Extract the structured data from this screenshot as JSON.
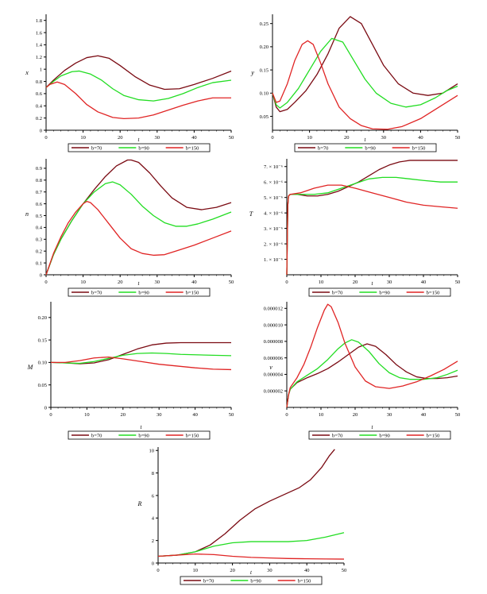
{
  "colors": {
    "b70": "#7a0a12",
    "b90": "#22dd22",
    "b150": "#e02424",
    "axis": "#000000"
  },
  "legend_labels": [
    "b=70",
    "b=90",
    "b=150"
  ],
  "chart_data": [
    {
      "id": "x",
      "type": "line",
      "title": "",
      "xlabel": "t",
      "ylabel": "x",
      "xlim": [
        0,
        50
      ],
      "ylim": [
        0,
        1.9
      ],
      "xticks": [
        0,
        10,
        20,
        30,
        40,
        50
      ],
      "xtick_labels": [
        "0",
        "10",
        "20",
        "30",
        "40",
        "50"
      ],
      "yticks": [
        0,
        0.2,
        0.4,
        0.6,
        0.8,
        1,
        1.2,
        1.4,
        1.6,
        1.8
      ],
      "ytick_labels": [
        "0",
        "0.2",
        "0.4",
        "0.6",
        "0.8",
        "1",
        "1.2",
        "1.4",
        "1.6",
        "1.8"
      ],
      "series": [
        {
          "name": "b=70",
          "color": "#7a0a12",
          "x": [
            0,
            2,
            5,
            8,
            11,
            14,
            17,
            20,
            24,
            28,
            32,
            36,
            40,
            45,
            50
          ],
          "y": [
            0.7,
            0.82,
            0.98,
            1.1,
            1.19,
            1.22,
            1.18,
            1.06,
            0.88,
            0.74,
            0.67,
            0.68,
            0.75,
            0.85,
            0.97
          ]
        },
        {
          "name": "b=90",
          "color": "#22dd22",
          "x": [
            0,
            2,
            4,
            7,
            9,
            12,
            15,
            18,
            21,
            25,
            29,
            33,
            37,
            41,
            45,
            50
          ],
          "y": [
            0.7,
            0.8,
            0.89,
            0.96,
            0.97,
            0.92,
            0.82,
            0.68,
            0.57,
            0.5,
            0.48,
            0.52,
            0.6,
            0.7,
            0.78,
            0.82
          ]
        },
        {
          "name": "b=150",
          "color": "#e02424",
          "x": [
            0,
            1,
            3,
            5,
            8,
            11,
            14,
            18,
            21,
            25,
            29,
            33,
            37,
            41,
            45,
            50
          ],
          "y": [
            0.7,
            0.75,
            0.79,
            0.75,
            0.6,
            0.42,
            0.3,
            0.21,
            0.19,
            0.2,
            0.25,
            0.33,
            0.41,
            0.48,
            0.53,
            0.53
          ]
        }
      ]
    },
    {
      "id": "y",
      "type": "line",
      "title": "",
      "xlabel": "t",
      "ylabel": "y",
      "xlim": [
        0,
        50
      ],
      "ylim": [
        0.02,
        0.27
      ],
      "xticks": [
        0,
        10,
        20,
        30,
        40,
        50
      ],
      "xtick_labels": [
        "0",
        "10",
        "20",
        "30",
        "40",
        "50"
      ],
      "yticks": [
        0.05,
        0.1,
        0.15,
        0.2,
        0.25
      ],
      "ytick_labels": [
        "0.05",
        "0.10",
        "0.15",
        "0.20",
        "0.25"
      ],
      "series": [
        {
          "name": "b=70",
          "color": "#7a0a12",
          "x": [
            0,
            1,
            2,
            4,
            6,
            9,
            12,
            15,
            18,
            21,
            24,
            27,
            30,
            34,
            38,
            42,
            46,
            50
          ],
          "y": [
            0.1,
            0.07,
            0.06,
            0.065,
            0.08,
            0.105,
            0.14,
            0.185,
            0.24,
            0.265,
            0.25,
            0.205,
            0.16,
            0.12,
            0.1,
            0.095,
            0.1,
            0.12
          ]
        },
        {
          "name": "b=90",
          "color": "#22dd22",
          "x": [
            0,
            1,
            2,
            4,
            7,
            10,
            13,
            16,
            19,
            22,
            25,
            28,
            32,
            36,
            40,
            44,
            47,
            50
          ],
          "y": [
            0.1,
            0.075,
            0.068,
            0.08,
            0.11,
            0.15,
            0.19,
            0.218,
            0.21,
            0.17,
            0.13,
            0.1,
            0.078,
            0.07,
            0.075,
            0.09,
            0.105,
            0.115
          ]
        },
        {
          "name": "b=150",
          "color": "#e02424",
          "x": [
            0,
            1,
            2,
            4,
            6,
            8,
            9.5,
            11,
            13,
            15,
            18,
            21,
            24,
            27,
            31,
            35,
            40,
            45,
            50
          ],
          "y": [
            0.1,
            0.08,
            0.083,
            0.12,
            0.17,
            0.205,
            0.213,
            0.205,
            0.165,
            0.12,
            0.07,
            0.045,
            0.03,
            0.023,
            0.022,
            0.028,
            0.045,
            0.07,
            0.095
          ]
        }
      ]
    },
    {
      "id": "n",
      "type": "line",
      "title": "",
      "xlabel": "t",
      "ylabel": "n",
      "xlim": [
        0,
        50
      ],
      "ylim": [
        0,
        0.98
      ],
      "xticks": [
        0,
        10,
        20,
        30,
        40,
        50
      ],
      "xtick_labels": [
        "0",
        "10",
        "20",
        "30",
        "40",
        "50"
      ],
      "yticks": [
        0,
        0.1,
        0.2,
        0.3,
        0.4,
        0.5,
        0.6,
        0.7,
        0.8,
        0.9
      ],
      "ytick_labels": [
        "0",
        "0.1",
        "0.2",
        "0.3",
        "0.4",
        "0.5",
        "0.6",
        "0.7",
        "0.8",
        "0.9"
      ],
      "series": [
        {
          "name": "b=70",
          "color": "#7a0a12",
          "x": [
            0,
            2,
            4,
            7,
            10,
            13,
            16,
            19,
            22,
            23,
            25,
            28,
            31,
            34,
            38,
            42,
            46,
            50
          ],
          "y": [
            0,
            0.17,
            0.3,
            0.46,
            0.6,
            0.72,
            0.83,
            0.92,
            0.97,
            0.97,
            0.95,
            0.86,
            0.75,
            0.65,
            0.57,
            0.55,
            0.57,
            0.61
          ]
        },
        {
          "name": "b=90",
          "color": "#22dd22",
          "x": [
            0,
            2,
            4,
            7,
            10,
            13,
            16,
            18,
            20,
            23,
            26,
            29,
            32,
            35,
            38,
            41,
            45,
            50
          ],
          "y": [
            0,
            0.17,
            0.3,
            0.46,
            0.6,
            0.7,
            0.77,
            0.785,
            0.76,
            0.68,
            0.58,
            0.5,
            0.44,
            0.41,
            0.41,
            0.43,
            0.47,
            0.53
          ]
        },
        {
          "name": "b=150",
          "color": "#e02424",
          "x": [
            0,
            2,
            4,
            6,
            8,
            10,
            11,
            12,
            14,
            17,
            20,
            23,
            26,
            29,
            32,
            35,
            40,
            45,
            50
          ],
          "y": [
            0,
            0.18,
            0.32,
            0.44,
            0.53,
            0.6,
            0.62,
            0.61,
            0.55,
            0.43,
            0.31,
            0.22,
            0.18,
            0.165,
            0.17,
            0.2,
            0.25,
            0.31,
            0.37
          ]
        }
      ]
    },
    {
      "id": "T",
      "type": "line",
      "title": "",
      "xlabel": "t",
      "ylabel": "T",
      "xlim": [
        0,
        50
      ],
      "ylim": [
        0,
        7.5e-06
      ],
      "xticks": [
        0,
        10,
        20,
        30,
        40,
        50
      ],
      "xtick_labels": [
        "0",
        "10",
        "20",
        "30",
        "40",
        "50"
      ],
      "yticks": [
        1e-06,
        2e-06,
        3e-06,
        4e-06,
        5e-06,
        6e-06,
        7e-06
      ],
      "ytick_labels": [
        "1. × 10⁻⁶",
        "2. × 10⁻⁶",
        "3. × 10⁻⁶",
        "4. × 10⁻⁶",
        "5. × 10⁻⁶",
        "6. × 10⁻⁶",
        "7. × 10⁻⁶"
      ],
      "series": [
        {
          "name": "b=70",
          "color": "#7a0a12",
          "x": [
            0,
            0.3,
            0.5,
            1,
            3,
            6,
            9,
            12,
            15,
            18,
            21,
            24,
            27,
            30,
            33,
            36,
            40,
            45,
            50
          ],
          "y": [
            0,
            4.5e-06,
            5.1e-06,
            5.2e-06,
            5.2e-06,
            5.1e-06,
            5.1e-06,
            5.2e-06,
            5.4e-06,
            5.7e-06,
            6e-06,
            6.4e-06,
            6.8e-06,
            7.1e-06,
            7.3e-06,
            7.4e-06,
            7.4e-06,
            7.4e-06,
            7.4e-06
          ]
        },
        {
          "name": "b=90",
          "color": "#22dd22",
          "x": [
            0,
            0.3,
            0.5,
            1,
            4,
            8,
            12,
            16,
            20,
            24,
            28,
            32,
            36,
            40,
            45,
            50
          ],
          "y": [
            0,
            4.5e-06,
            5.1e-06,
            5.2e-06,
            5.2e-06,
            5.2e-06,
            5.3e-06,
            5.6e-06,
            5.9e-06,
            6.2e-06,
            6.3e-06,
            6.3e-06,
            6.2e-06,
            6.1e-06,
            6e-06,
            6e-06
          ]
        },
        {
          "name": "b=150",
          "color": "#e02424",
          "x": [
            0,
            0.3,
            0.5,
            1,
            4,
            8,
            12,
            16,
            20,
            25,
            30,
            35,
            40,
            45,
            50
          ],
          "y": [
            0,
            4.5e-06,
            5.1e-06,
            5.2e-06,
            5.3e-06,
            5.6e-06,
            5.8e-06,
            5.8e-06,
            5.6e-06,
            5.3e-06,
            5e-06,
            4.7e-06,
            4.5e-06,
            4.4e-06,
            4.3e-06
          ]
        }
      ]
    },
    {
      "id": "M",
      "type": "line",
      "title": "",
      "xlabel": "t",
      "ylabel": "M",
      "xlim": [
        0,
        50
      ],
      "ylim": [
        0,
        0.235
      ],
      "xticks": [
        0,
        10,
        20,
        30,
        40,
        50
      ],
      "xtick_labels": [
        "0",
        "10",
        "20",
        "30",
        "40",
        "50"
      ],
      "yticks": [
        0,
        0.05,
        0.1,
        0.15,
        0.2
      ],
      "ytick_labels": [
        "0",
        "0.05",
        "0.10",
        "0.15",
        "0.20"
      ],
      "series": [
        {
          "name": "b=70",
          "color": "#7a0a12",
          "x": [
            0,
            4,
            8,
            12,
            16,
            20,
            24,
            28,
            32,
            36,
            40,
            45,
            50
          ],
          "y": [
            0.1,
            0.099,
            0.097,
            0.099,
            0.106,
            0.118,
            0.13,
            0.139,
            0.143,
            0.144,
            0.144,
            0.144,
            0.144
          ]
        },
        {
          "name": "b=90",
          "color": "#22dd22",
          "x": [
            0,
            4,
            8,
            12,
            16,
            20,
            24,
            28,
            32,
            36,
            40,
            45,
            50
          ],
          "y": [
            0.1,
            0.099,
            0.098,
            0.102,
            0.109,
            0.116,
            0.12,
            0.121,
            0.12,
            0.118,
            0.117,
            0.116,
            0.115
          ]
        },
        {
          "name": "b=150",
          "color": "#e02424",
          "x": [
            0,
            4,
            8,
            12,
            16,
            20,
            25,
            30,
            35,
            40,
            45,
            50
          ],
          "y": [
            0.1,
            0.1,
            0.104,
            0.11,
            0.112,
            0.108,
            0.102,
            0.096,
            0.092,
            0.088,
            0.085,
            0.084
          ]
        }
      ]
    },
    {
      "id": "v",
      "type": "line",
      "title": "",
      "xlabel": "t",
      "ylabel": "v",
      "xlim": [
        0,
        50
      ],
      "ylim": [
        0,
        1.28e-05
      ],
      "xticks": [
        0,
        10,
        20,
        30,
        40,
        50
      ],
      "xtick_labels": [
        "0",
        "10",
        "20",
        "30",
        "40",
        "50"
      ],
      "yticks": [
        2e-06,
        4e-06,
        6e-06,
        8e-06,
        1e-05,
        1.2e-05
      ],
      "ytick_labels": [
        "0.000002",
        "0.000004",
        "0.000006",
        "0.000008",
        "0.000010",
        "0.000012"
      ],
      "series": [
        {
          "name": "b=70",
          "color": "#7a0a12",
          "x": [
            0,
            0.5,
            1,
            3,
            6,
            9,
            12,
            15,
            18,
            21,
            23.5,
            26,
            29,
            32,
            35,
            38,
            41,
            44,
            47,
            50
          ],
          "y": [
            0,
            1.5e-06,
            2.2e-06,
            3e-06,
            3.6e-06,
            4.1e-06,
            4.7e-06,
            5.5e-06,
            6.4e-06,
            7.3e-06,
            7.7e-06,
            7.4e-06,
            6.4e-06,
            5.2e-06,
            4.3e-06,
            3.7e-06,
            3.5e-06,
            3.5e-06,
            3.6e-06,
            3.8e-06
          ]
        },
        {
          "name": "b=90",
          "color": "#22dd22",
          "x": [
            0,
            0.5,
            1,
            3,
            6,
            9,
            12,
            15,
            17,
            19,
            21,
            24,
            27,
            30,
            33,
            36,
            40,
            44,
            47,
            50
          ],
          "y": [
            0,
            1.5e-06,
            2.2e-06,
            3.1e-06,
            3.9e-06,
            4.7e-06,
            5.8e-06,
            7.1e-06,
            7.8e-06,
            8.2e-06,
            7.9e-06,
            6.8e-06,
            5.3e-06,
            4.2e-06,
            3.6e-06,
            3.4e-06,
            3.4e-06,
            3.6e-06,
            4e-06,
            4.5e-06
          ]
        },
        {
          "name": "b=150",
          "color": "#e02424",
          "x": [
            0,
            0.5,
            1,
            3,
            5,
            7,
            9,
            11,
            12,
            13,
            15,
            17,
            20,
            23,
            26,
            30,
            34,
            38,
            42,
            46,
            50
          ],
          "y": [
            0,
            1.5e-06,
            2.4e-06,
            3.6e-06,
            5.2e-06,
            7.3e-06,
            9.7e-06,
            1.18e-05,
            1.25e-05,
            1.22e-05,
            1.03e-05,
            7.8e-06,
            4.9e-06,
            3.2e-06,
            2.5e-06,
            2.3e-06,
            2.6e-06,
            3.1e-06,
            3.8e-06,
            4.6e-06,
            5.6e-06
          ]
        }
      ]
    },
    {
      "id": "R",
      "type": "line",
      "title": "",
      "xlabel": "t",
      "ylabel": "R",
      "xlim": [
        0,
        50
      ],
      "ylim": [
        0,
        10.3
      ],
      "xticks": [
        0,
        10,
        20,
        30,
        40,
        50
      ],
      "xtick_labels": [
        "0",
        "10",
        "20",
        "30",
        "40",
        "50"
      ],
      "yticks": [
        0,
        2,
        4,
        6,
        8,
        10
      ],
      "ytick_labels": [
        "0",
        "2",
        "4",
        "6",
        "8",
        "10"
      ],
      "series": [
        {
          "name": "b=70",
          "color": "#7a0a12",
          "x": [
            0,
            5,
            10,
            14,
            18,
            22,
            26,
            30,
            34,
            38,
            41,
            44,
            46,
            47.5
          ],
          "y": [
            0.6,
            0.7,
            1.0,
            1.6,
            2.6,
            3.8,
            4.8,
            5.5,
            6.1,
            6.7,
            7.4,
            8.5,
            9.5,
            10.1
          ]
        },
        {
          "name": "b=90",
          "color": "#22dd22",
          "x": [
            0,
            5,
            10,
            15,
            20,
            25,
            30,
            35,
            40,
            45,
            50
          ],
          "y": [
            0.6,
            0.7,
            1.0,
            1.5,
            1.8,
            1.9,
            1.9,
            1.9,
            2.0,
            2.3,
            2.7
          ]
        },
        {
          "name": "b=150",
          "color": "#e02424",
          "x": [
            0,
            5,
            10,
            15,
            20,
            25,
            30,
            35,
            40,
            45,
            50
          ],
          "y": [
            0.6,
            0.7,
            0.8,
            0.75,
            0.6,
            0.5,
            0.45,
            0.4,
            0.38,
            0.36,
            0.35
          ]
        }
      ]
    }
  ]
}
